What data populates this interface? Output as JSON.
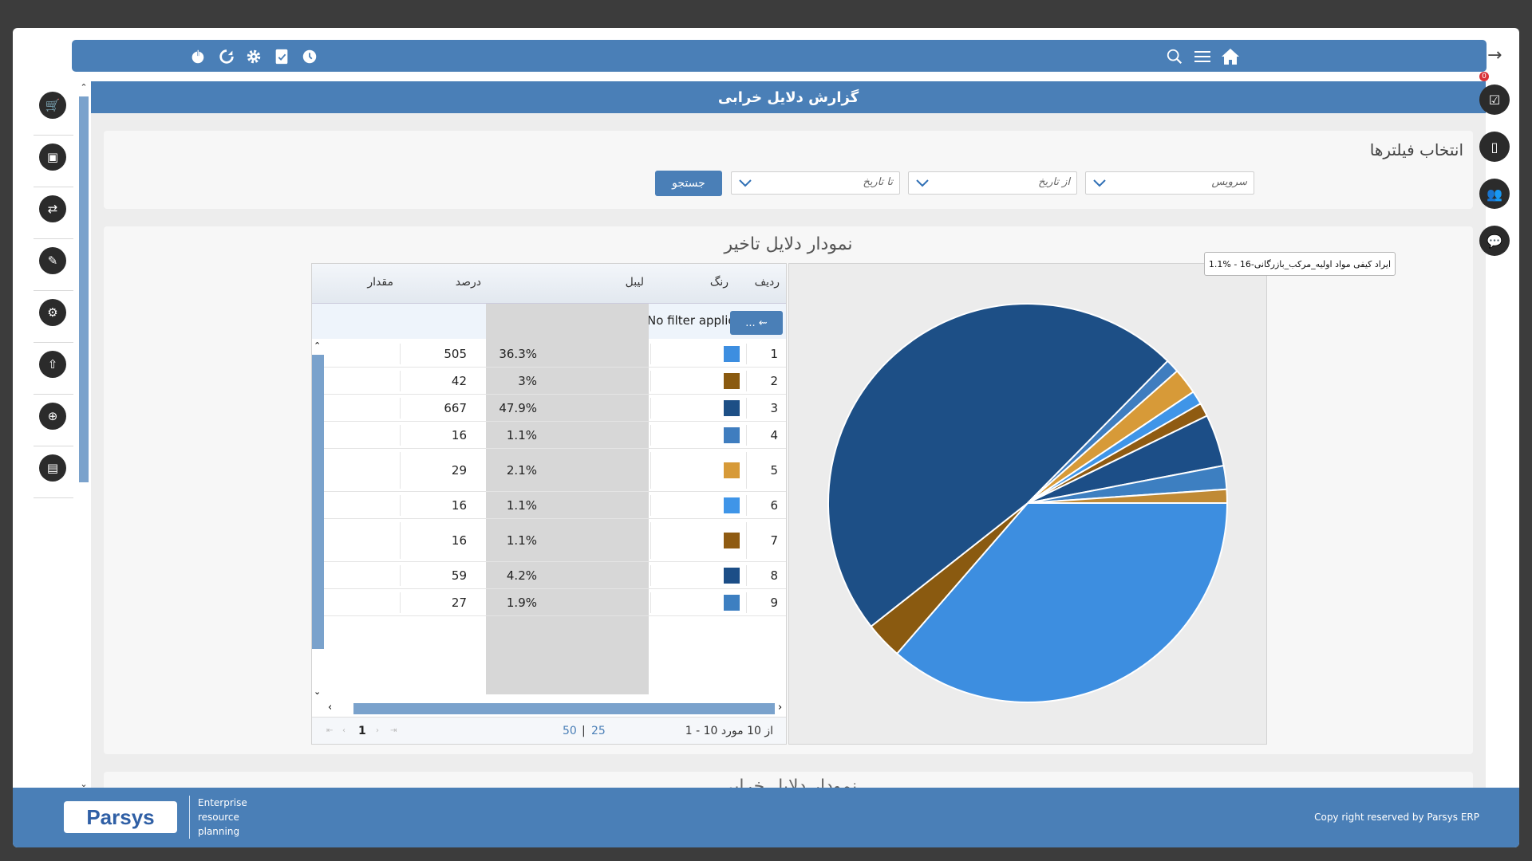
{
  "page": {
    "title": "گزارش دلایل خرابی"
  },
  "topbar": {
    "left_icons": [
      "power-icon",
      "refresh-icon",
      "gear-icon",
      "clipboard-icon",
      "clock-icon"
    ],
    "right_icons": [
      "search-icon",
      "menu-icon",
      "home-icon"
    ]
  },
  "left_rail": {
    "items": [
      "cart-icon",
      "briefcase-icon",
      "sync-icon",
      "pencil-icon",
      "gear-icon",
      "upload-icon",
      "zoom-icon",
      "image-icon"
    ]
  },
  "right_rail": {
    "items": [
      "checklist-icon",
      "tablet-icon",
      "people-icon",
      "chat-icon"
    ],
    "badge": "0"
  },
  "filters": {
    "title": "انتخاب فیلترها",
    "service_placeholder": "سرویس",
    "from_date_placeholder": "از تاریخ",
    "to_date_placeholder": "تا تاریخ",
    "search_label": "جستجو"
  },
  "chart_section": {
    "title": "نمودار دلایل تاخیر"
  },
  "grid": {
    "headers": {
      "row": "ردیف",
      "color": "رنگ",
      "label": "لیبل",
      "percent": "درصد",
      "value": "مقدار"
    },
    "filter_text": "No filter applied",
    "filter_button": "...",
    "rows": [
      {
        "row": "1",
        "color": "#3d8ee0",
        "percent": "36.3%",
        "value": "505"
      },
      {
        "row": "2",
        "color": "#8a5a10",
        "percent": "3%",
        "value": "42"
      },
      {
        "row": "3",
        "color": "#1d4f86",
        "percent": "47.9%",
        "value": "667"
      },
      {
        "row": "4",
        "color": "#3f7dbf",
        "percent": "1.1%",
        "value": "16"
      },
      {
        "row": "5",
        "color": "#d79a38",
        "percent": "2.1%",
        "value": "29"
      },
      {
        "row": "6",
        "color": "#3f95e8",
        "percent": "1.1%",
        "value": "16"
      },
      {
        "row": "7",
        "color": "#8f5b12",
        "percent": "1.1%",
        "value": "16"
      },
      {
        "row": "8",
        "color": "#1c4e87",
        "percent": "4.2%",
        "value": "59"
      },
      {
        "row": "9",
        "color": "#3d7fc1",
        "percent": "1.9%",
        "value": "27"
      }
    ],
    "pager": {
      "summary": "1 - 10 از 10 مورد",
      "size_25": "25",
      "size_50": "50",
      "sep": "|",
      "current_page": "1"
    }
  },
  "chart_data": {
    "type": "pie",
    "values": [
      36.3,
      3,
      47.9,
      1.1,
      2.1,
      1.1,
      1.1,
      4.2,
      1.9,
      1.1
    ],
    "colors": [
      "#3d8ee0",
      "#8a5a10",
      "#1d4f86",
      "#3f7dbf",
      "#d79a38",
      "#3f95e8",
      "#8f5b12",
      "#1c4e87",
      "#3d7fc1",
      "#c08a35"
    ],
    "tooltip": "1.1% - ایراد کیفی مواد اولیه_مرکب_بازرگانی-16"
  },
  "next_section": {
    "title": "نمودار دلایل خرابی"
  },
  "footer": {
    "logo": "Parsys",
    "erp_line1": "Enterprise",
    "erp_line2": "resource",
    "erp_line3": "planning",
    "copyright": "Copy right reserved by Parsys ERP"
  },
  "colors": {
    "accent": "#4a7fb7",
    "scroll": "#7aa2cc"
  }
}
